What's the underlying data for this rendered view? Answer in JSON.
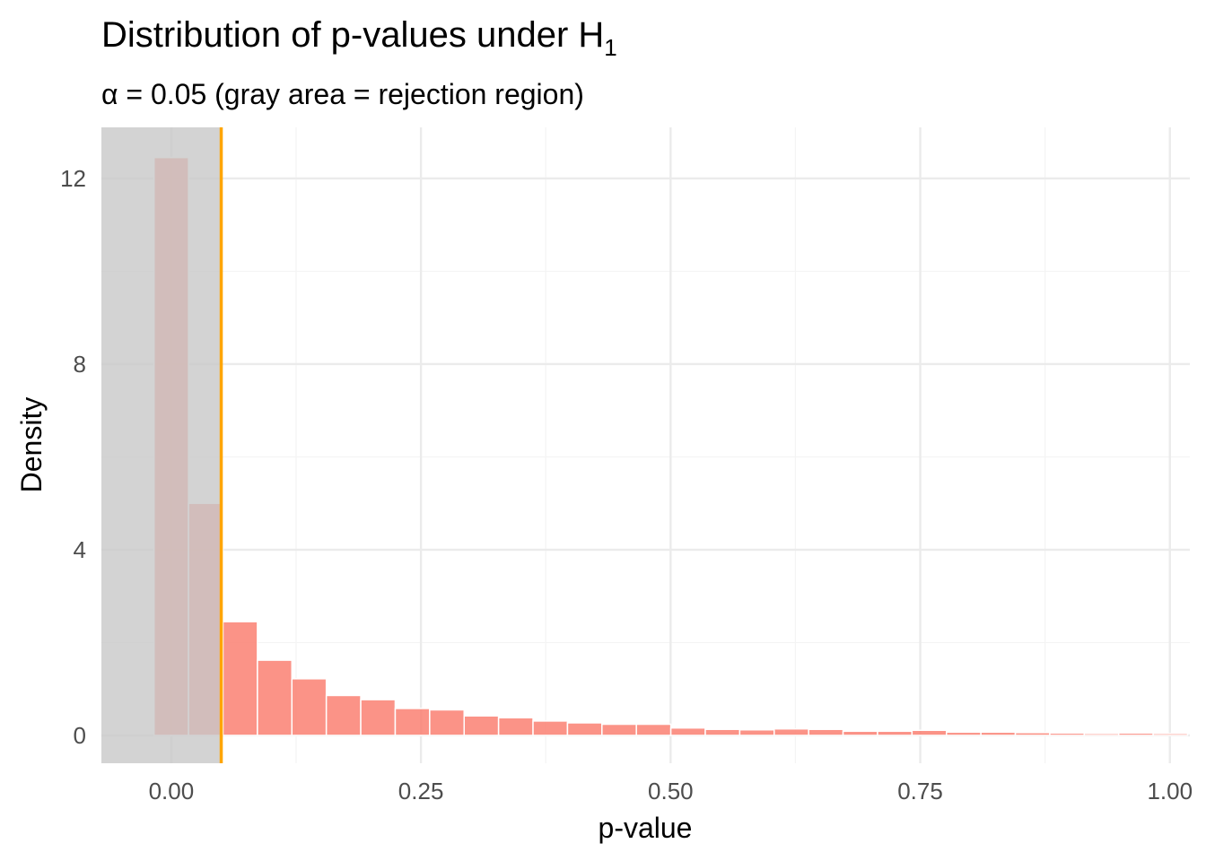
{
  "chart_data": {
    "type": "bar",
    "title": "Distribution of p-values under  H",
    "title_subscript": "1",
    "subtitle": "α = 0.05 (gray area = rejection region)",
    "xlabel": "p-value",
    "ylabel": "Density",
    "xlim": [
      -0.07,
      1.02
    ],
    "ylim": [
      -0.6,
      13.1
    ],
    "x_ticks": [
      0.0,
      0.25,
      0.5,
      0.75,
      1.0
    ],
    "x_tick_labels": [
      "0.00",
      "0.25",
      "0.50",
      "0.75",
      "1.00"
    ],
    "y_ticks": [
      0,
      4,
      8,
      12
    ],
    "y_tick_labels": [
      "0",
      "4",
      "8",
      "12"
    ],
    "bin_width": 0.0345,
    "bins": [
      {
        "x": 0.0,
        "density": 12.45
      },
      {
        "x": 0.0345,
        "density": 5.0
      },
      {
        "x": 0.069,
        "density": 2.45
      },
      {
        "x": 0.1035,
        "density": 1.62
      },
      {
        "x": 0.138,
        "density": 1.22
      },
      {
        "x": 0.1725,
        "density": 0.86
      },
      {
        "x": 0.207,
        "density": 0.77
      },
      {
        "x": 0.2415,
        "density": 0.58
      },
      {
        "x": 0.276,
        "density": 0.55
      },
      {
        "x": 0.3105,
        "density": 0.42
      },
      {
        "x": 0.345,
        "density": 0.38
      },
      {
        "x": 0.3795,
        "density": 0.31
      },
      {
        "x": 0.414,
        "density": 0.27
      },
      {
        "x": 0.4485,
        "density": 0.24
      },
      {
        "x": 0.483,
        "density": 0.24
      },
      {
        "x": 0.5175,
        "density": 0.16
      },
      {
        "x": 0.552,
        "density": 0.13
      },
      {
        "x": 0.5865,
        "density": 0.12
      },
      {
        "x": 0.621,
        "density": 0.14
      },
      {
        "x": 0.6555,
        "density": 0.13
      },
      {
        "x": 0.69,
        "density": 0.09
      },
      {
        "x": 0.7245,
        "density": 0.09
      },
      {
        "x": 0.759,
        "density": 0.11
      },
      {
        "x": 0.7935,
        "density": 0.07
      },
      {
        "x": 0.828,
        "density": 0.07
      },
      {
        "x": 0.8625,
        "density": 0.06
      },
      {
        "x": 0.897,
        "density": 0.05
      },
      {
        "x": 0.9315,
        "density": 0.04
      },
      {
        "x": 0.966,
        "density": 0.05
      },
      {
        "x": 1.0005,
        "density": 0.04
      }
    ],
    "alpha": 0.05,
    "rejection_region": [
      -0.07,
      0.05
    ],
    "grid": true,
    "colors": {
      "bar_fill": "#fa8072",
      "bar_fill_opacity": 0.85,
      "bar_stroke": "#ffffff",
      "rejection_fill": "#c8c8c8",
      "alpha_line": "#ffa500",
      "grid_major": "#ebebeb",
      "grid_minor": "#f4f4f4"
    }
  }
}
